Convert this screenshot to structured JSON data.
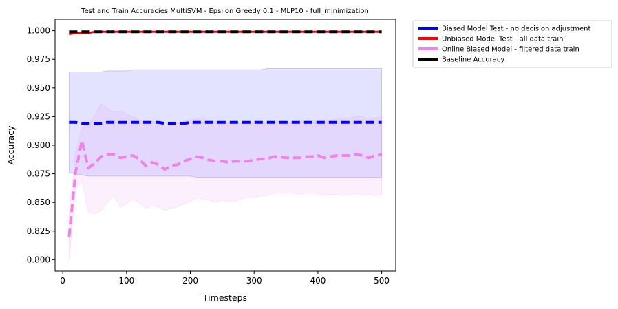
{
  "chart_data": {
    "type": "line",
    "title": "Test and Train Accuracies MultiSVM - Epsilon Greedy 0.1 - MLP10 - full_minimization",
    "xlabel": "Timesteps",
    "ylabel": "Accuracy",
    "xlim": [
      -12,
      522
    ],
    "ylim": [
      0.79,
      1.01
    ],
    "xticks": [
      0,
      100,
      200,
      300,
      400,
      500
    ],
    "yticks": [
      0.8,
      0.825,
      0.85,
      0.875,
      0.9,
      0.925,
      0.95,
      0.975,
      1.0
    ],
    "ytick_labels": [
      "0.800",
      "0.825",
      "0.850",
      "0.875",
      "0.900",
      "0.925",
      "0.950",
      "0.975",
      "1.000"
    ],
    "grid": false,
    "legend_placement": "outside-top-right",
    "x": [
      10,
      20,
      30,
      40,
      50,
      60,
      70,
      80,
      90,
      100,
      110,
      120,
      130,
      140,
      150,
      160,
      170,
      180,
      190,
      200,
      210,
      220,
      230,
      240,
      250,
      260,
      270,
      280,
      290,
      300,
      310,
      320,
      330,
      340,
      350,
      360,
      370,
      380,
      390,
      400,
      410,
      420,
      430,
      440,
      450,
      460,
      470,
      480,
      490,
      500
    ],
    "series": [
      {
        "name": "Biased Model Test - no decision adjustment",
        "color": "#0000ff",
        "band_color": "#0000ff",
        "values": [
          0.92,
          0.92,
          0.919,
          0.919,
          0.919,
          0.919,
          0.92,
          0.92,
          0.92,
          0.92,
          0.92,
          0.92,
          0.92,
          0.92,
          0.92,
          0.919,
          0.919,
          0.919,
          0.919,
          0.92,
          0.92,
          0.92,
          0.92,
          0.92,
          0.92,
          0.92,
          0.92,
          0.92,
          0.92,
          0.92,
          0.92,
          0.92,
          0.92,
          0.92,
          0.92,
          0.92,
          0.92,
          0.92,
          0.92,
          0.92,
          0.92,
          0.92,
          0.92,
          0.92,
          0.92,
          0.92,
          0.92,
          0.92,
          0.92,
          0.92
        ],
        "lower": [
          0.876,
          0.875,
          0.874,
          0.873,
          0.873,
          0.873,
          0.873,
          0.873,
          0.873,
          0.873,
          0.873,
          0.873,
          0.873,
          0.873,
          0.873,
          0.873,
          0.873,
          0.873,
          0.873,
          0.873,
          0.872,
          0.872,
          0.872,
          0.872,
          0.872,
          0.872,
          0.872,
          0.872,
          0.872,
          0.872,
          0.872,
          0.872,
          0.872,
          0.872,
          0.872,
          0.872,
          0.872,
          0.872,
          0.872,
          0.872,
          0.872,
          0.872,
          0.872,
          0.872,
          0.872,
          0.872,
          0.872,
          0.872,
          0.872,
          0.872
        ],
        "upper": [
          0.964,
          0.964,
          0.964,
          0.964,
          0.964,
          0.964,
          0.965,
          0.965,
          0.965,
          0.965,
          0.966,
          0.966,
          0.966,
          0.966,
          0.966,
          0.966,
          0.966,
          0.966,
          0.966,
          0.966,
          0.966,
          0.966,
          0.966,
          0.966,
          0.966,
          0.966,
          0.966,
          0.966,
          0.966,
          0.966,
          0.966,
          0.967,
          0.967,
          0.967,
          0.967,
          0.967,
          0.967,
          0.967,
          0.967,
          0.967,
          0.967,
          0.967,
          0.967,
          0.967,
          0.967,
          0.967,
          0.967,
          0.967,
          0.967,
          0.967
        ]
      },
      {
        "name": "Unbiased Model Test - all data train",
        "color": "#ff0000",
        "values": [
          0.997,
          0.998,
          0.998,
          0.998,
          0.999,
          0.999,
          0.999,
          0.999,
          0.999,
          0.999,
          0.999,
          0.999,
          0.999,
          0.999,
          0.999,
          0.999,
          0.999,
          0.999,
          0.999,
          0.999,
          0.999,
          0.999,
          0.999,
          0.999,
          0.999,
          0.999,
          0.999,
          0.999,
          0.999,
          0.999,
          0.999,
          0.999,
          0.999,
          0.999,
          0.999,
          0.999,
          0.999,
          0.999,
          0.999,
          0.999,
          0.999,
          0.999,
          0.999,
          0.999,
          0.999,
          0.999,
          0.999,
          0.999,
          0.999,
          0.999
        ]
      },
      {
        "name": "Online Biased Model - filtered data train",
        "color": "#ee82ee",
        "band_color": "#ee82ee",
        "values": [
          0.82,
          0.876,
          0.904,
          0.88,
          0.884,
          0.89,
          0.892,
          0.892,
          0.889,
          0.89,
          0.891,
          0.888,
          0.882,
          0.885,
          0.883,
          0.879,
          0.882,
          0.883,
          0.886,
          0.888,
          0.89,
          0.889,
          0.887,
          0.886,
          0.886,
          0.885,
          0.886,
          0.886,
          0.886,
          0.887,
          0.888,
          0.888,
          0.89,
          0.89,
          0.889,
          0.889,
          0.889,
          0.89,
          0.89,
          0.891,
          0.889,
          0.89,
          0.891,
          0.891,
          0.891,
          0.892,
          0.891,
          0.889,
          0.891,
          0.892
        ],
        "lower": [
          0.8,
          0.86,
          0.87,
          0.842,
          0.84,
          0.843,
          0.85,
          0.856,
          0.846,
          0.849,
          0.853,
          0.85,
          0.845,
          0.847,
          0.846,
          0.843,
          0.845,
          0.846,
          0.849,
          0.851,
          0.854,
          0.853,
          0.852,
          0.85,
          0.852,
          0.851,
          0.851,
          0.853,
          0.854,
          0.854,
          0.856,
          0.856,
          0.858,
          0.858,
          0.858,
          0.858,
          0.857,
          0.858,
          0.858,
          0.858,
          0.856,
          0.857,
          0.857,
          0.856,
          0.857,
          0.858,
          0.856,
          0.857,
          0.856,
          0.857
        ],
        "upper": [
          0.84,
          0.892,
          0.915,
          0.918,
          0.926,
          0.936,
          0.932,
          0.929,
          0.93,
          0.927,
          0.925,
          0.922,
          0.92,
          0.921,
          0.919,
          0.915,
          0.918,
          0.919,
          0.921,
          0.922,
          0.924,
          0.923,
          0.921,
          0.921,
          0.92,
          0.919,
          0.92,
          0.919,
          0.919,
          0.919,
          0.92,
          0.92,
          0.921,
          0.921,
          0.921,
          0.92,
          0.921,
          0.921,
          0.921,
          0.922,
          0.922,
          0.922,
          0.923,
          0.924,
          0.924,
          0.925,
          0.925,
          0.922,
          0.924,
          0.925
        ]
      },
      {
        "name": "Baseline Accuracy",
        "color": "#000000",
        "values": [
          0.999,
          0.999,
          0.999,
          0.999,
          0.999,
          0.999,
          0.999,
          0.999,
          0.999,
          0.999,
          0.999,
          0.999,
          0.999,
          0.999,
          0.999,
          0.999,
          0.999,
          0.999,
          0.999,
          0.999,
          0.999,
          0.999,
          0.999,
          0.999,
          0.999,
          0.999,
          0.999,
          0.999,
          0.999,
          0.999,
          0.999,
          0.999,
          0.999,
          0.999,
          0.999,
          0.999,
          0.999,
          0.999,
          0.999,
          0.999,
          0.999,
          0.999,
          0.999,
          0.999,
          0.999,
          0.999,
          0.999,
          0.999,
          0.999,
          0.999
        ]
      }
    ]
  }
}
